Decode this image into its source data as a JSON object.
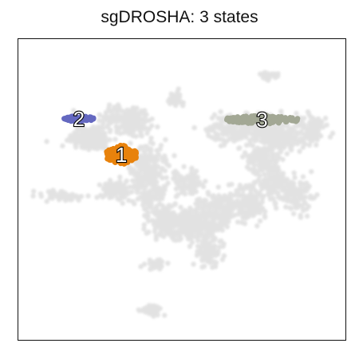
{
  "chart_data": {
    "type": "scatter",
    "title": "sgDROSHA: 3 states",
    "xlabel": "",
    "ylabel": "",
    "grid": false,
    "background_color": "#dedede",
    "clusters": [
      {
        "label": "1",
        "color": "#e8820c",
        "center": [
          0.315,
          0.385
        ]
      },
      {
        "label": "2",
        "color": "#6468c0",
        "center": [
          0.185,
          0.265
        ]
      },
      {
        "label": "3",
        "color": "#a3a895",
        "center": [
          0.745,
          0.268
        ]
      }
    ]
  }
}
